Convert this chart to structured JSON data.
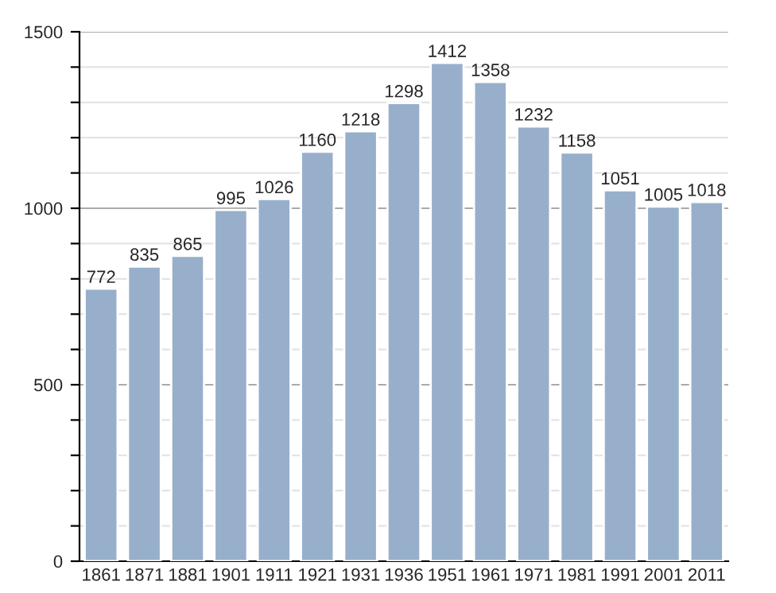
{
  "chart_data": {
    "type": "bar",
    "categories": [
      "1861",
      "1871",
      "1881",
      "1901",
      "1911",
      "1921",
      "1931",
      "1936",
      "1951",
      "1961",
      "1971",
      "1981",
      "1991",
      "2001",
      "2011"
    ],
    "values": [
      772,
      835,
      865,
      995,
      1026,
      1160,
      1218,
      1298,
      1412,
      1358,
      1232,
      1158,
      1051,
      1005,
      1018
    ],
    "color": "#97afcb",
    "ylim": [
      0,
      1500
    ],
    "yticks": [
      0,
      {
        "value": 100,
        "label": null
      },
      {
        "value": 200,
        "label": null
      },
      {
        "value": 300,
        "label": null
      },
      {
        "value": 400,
        "label": null
      },
      500,
      {
        "value": 600,
        "label": null
      },
      {
        "value": 700,
        "label": null
      },
      {
        "value": 800,
        "label": null
      },
      {
        "value": 900,
        "label": null
      },
      1000,
      {
        "value": 1100,
        "label": null
      },
      {
        "value": 1200,
        "label": null
      },
      {
        "value": 1300,
        "label": null
      },
      {
        "value": 1400,
        "label": null
      },
      1500
    ],
    "grid": "y",
    "data_labels": true
  }
}
